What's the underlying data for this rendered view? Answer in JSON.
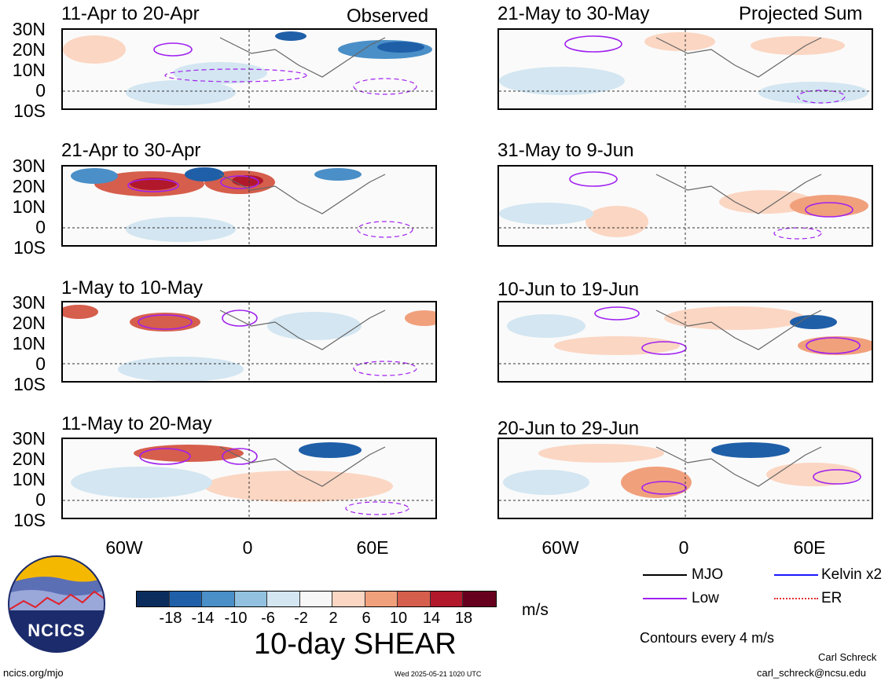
{
  "header": {
    "observed_label": "Observed",
    "projected_label": "Projected Sum"
  },
  "panels_left": [
    {
      "date_range": "11-Apr to 20-Apr"
    },
    {
      "date_range": "21-Apr to 30-Apr"
    },
    {
      "date_range": "1-May to 10-May"
    },
    {
      "date_range": "11-May to 20-May"
    }
  ],
  "panels_right": [
    {
      "date_range": "21-May to 30-May"
    },
    {
      "date_range": "31-May to 9-Jun"
    },
    {
      "date_range": "10-Jun to 19-Jun"
    },
    {
      "date_range": "20-Jun to 29-Jun"
    }
  ],
  "lat_ticks": [
    "30N",
    "20N",
    "10N",
    "0",
    "10S"
  ],
  "lon_ticks": [
    "60W",
    "0",
    "60E"
  ],
  "colorbar": {
    "ticks": [
      "-18",
      "-14",
      "-10",
      "-6",
      "-2",
      "2",
      "6",
      "10",
      "14",
      "18"
    ],
    "units": "m/s",
    "colors": [
      "#0a2d5e",
      "#1f5fa8",
      "#4a8fc7",
      "#92c1df",
      "#d3e6f1",
      "#f7f7f7",
      "#fbd6c2",
      "#f1a07c",
      "#d65e4c",
      "#b2182b",
      "#67001f"
    ]
  },
  "title": "10-day SHEAR",
  "legend": {
    "mjo": "MJO",
    "kelvin": "Kelvin x2",
    "low": "Low",
    "er": "ER",
    "colors": {
      "mjo": "#000000",
      "kelvin": "#1a1aff",
      "low": "#a020f0",
      "er": "#e03030"
    }
  },
  "contour_note": "Contours every 4 m/s",
  "logo": {
    "text": "NCICS"
  },
  "footer": {
    "url": "ncics.org/mjo",
    "timestamp": "Wed 2025-05-21 1020 UTC",
    "author": "Carl Schreck",
    "email": "carl_schreck@ncsu.edu"
  }
}
